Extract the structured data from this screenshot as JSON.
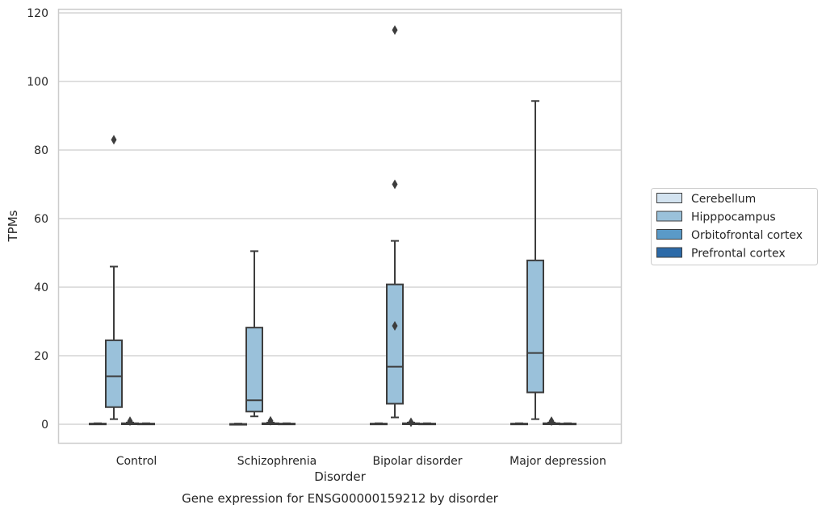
{
  "chart_data": {
    "type": "box",
    "title": "Gene expression for ENSG00000159212 by disorder",
    "xlabel": "Disorder",
    "ylabel": "TPMs",
    "ylim": [
      -5.5,
      121
    ],
    "yticks": [
      0,
      20,
      40,
      60,
      80,
      100,
      120
    ],
    "grid": "horizontal",
    "legend_position": "right",
    "categories": [
      "Control",
      "Schizophrenia",
      "Bipolar disorder",
      "Major depression"
    ],
    "series": [
      {
        "name": "Cerebellum",
        "color": "#d3e3f0",
        "boxes": [
          {
            "min": 0,
            "q1": 0,
            "median": 0,
            "q3": 0.2,
            "max": 0.3,
            "outliers": []
          },
          {
            "min": 0,
            "q1": 0,
            "median": 0,
            "q3": 0.1,
            "max": 0.2,
            "outliers": []
          },
          {
            "min": 0,
            "q1": 0,
            "median": 0,
            "q3": 0.2,
            "max": 0.3,
            "outliers": []
          },
          {
            "min": 0,
            "q1": 0,
            "median": 0,
            "q3": 0.2,
            "max": 0.3,
            "outliers": []
          }
        ]
      },
      {
        "name": "Hipppocampus",
        "color": "#9ac1da",
        "boxes": [
          {
            "min": 1.5,
            "q1": 5,
            "median": 14,
            "q3": 24.5,
            "max": 46,
            "outliers": [
              83
            ]
          },
          {
            "min": 2.3,
            "q1": 3.7,
            "median": 7,
            "q3": 28.2,
            "max": 50.5,
            "outliers": []
          },
          {
            "min": 2,
            "q1": 6,
            "median": 16.8,
            "q3": 40.8,
            "max": 53.5,
            "outliers": [
              28.7,
              70,
              115
            ]
          },
          {
            "min": 1.5,
            "q1": 9.3,
            "median": 20.8,
            "q3": 47.8,
            "max": 94.3,
            "outliers": []
          }
        ]
      },
      {
        "name": "Orbitofrontal cortex",
        "color": "#5a9ac8",
        "boxes": [
          {
            "min": 0,
            "q1": 0,
            "median": 0.1,
            "q3": 0.3,
            "max": 0.5,
            "outliers": [
              0.9
            ]
          },
          {
            "min": 0,
            "q1": 0,
            "median": 0.1,
            "q3": 0.3,
            "max": 0.5,
            "outliers": [
              1.0
            ]
          },
          {
            "min": 0,
            "q1": 0,
            "median": 0.1,
            "q3": 0.3,
            "max": 0.5,
            "outliers": [
              0.6
            ]
          },
          {
            "min": 0,
            "q1": 0,
            "median": 0.1,
            "q3": 0.3,
            "max": 0.5,
            "outliers": [
              0.9
            ]
          }
        ]
      },
      {
        "name": "Prefrontal cortex",
        "color": "#2c6aa8",
        "boxes": [
          {
            "min": 0,
            "q1": 0,
            "median": 0.1,
            "q3": 0.2,
            "max": 0.3,
            "outliers": []
          },
          {
            "min": 0,
            "q1": 0,
            "median": 0.1,
            "q3": 0.2,
            "max": 0.3,
            "outliers": []
          },
          {
            "min": 0,
            "q1": 0,
            "median": 0.1,
            "q3": 0.2,
            "max": 0.3,
            "outliers": []
          },
          {
            "min": 0,
            "q1": 0,
            "median": 0.1,
            "q3": 0.2,
            "max": 0.3,
            "outliers": []
          }
        ]
      }
    ]
  }
}
